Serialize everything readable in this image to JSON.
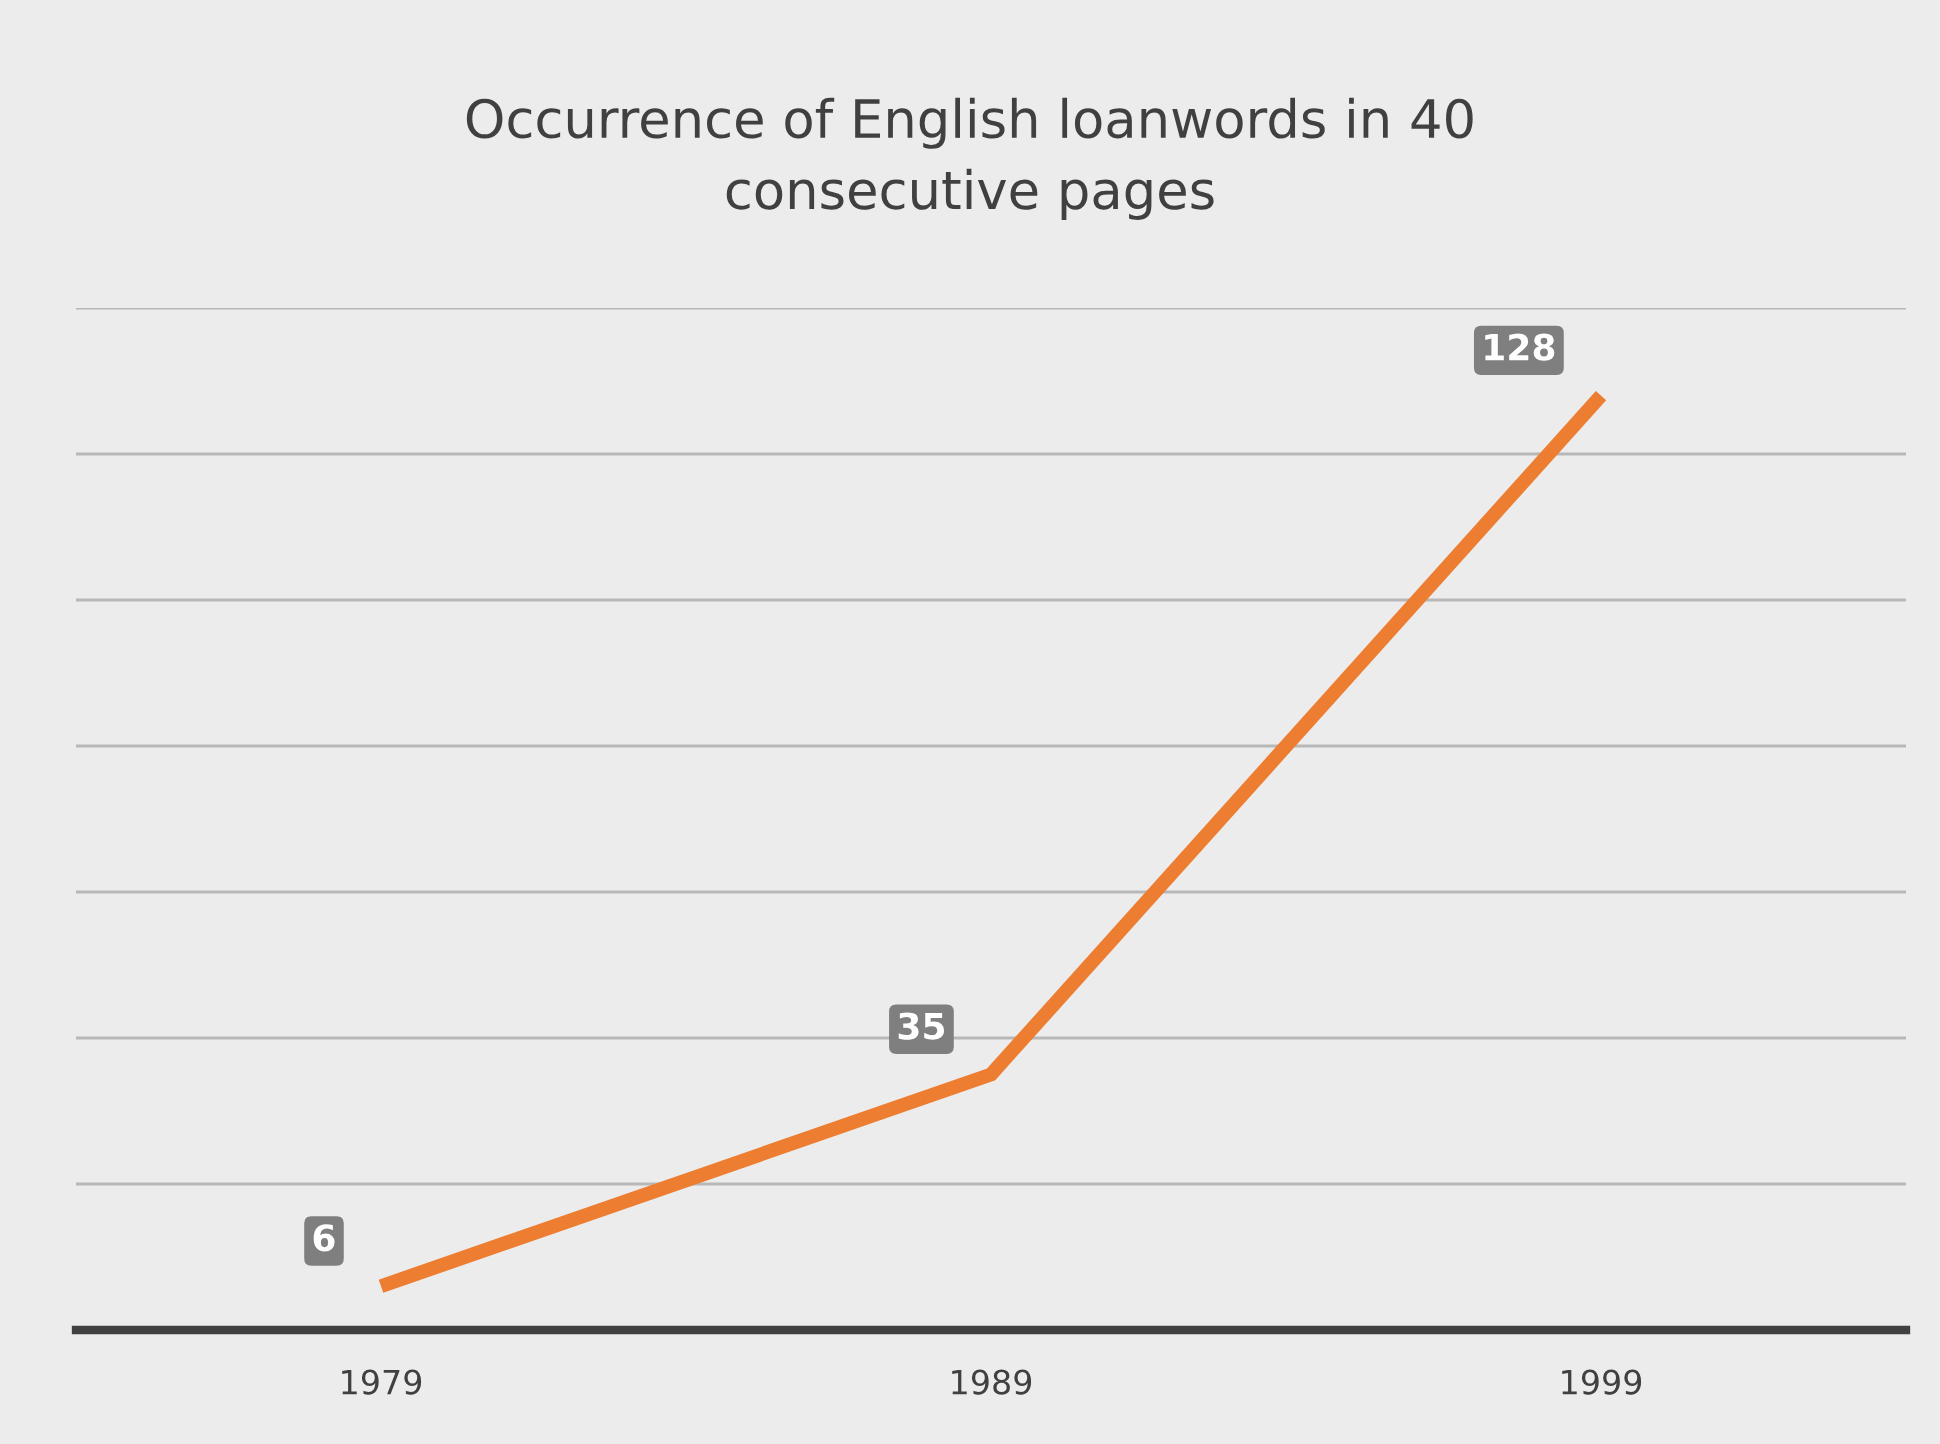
{
  "chart_data": {
    "type": "line",
    "title": "Occurrence of English loanwords in 40\nconsecutive pages",
    "categories": [
      "1979",
      "1989",
      "1999"
    ],
    "series": [
      {
        "color": "#ed7d31",
        "values": [
          6,
          35,
          128
        ]
      }
    ],
    "ylim": [
      0,
      140
    ],
    "yticks": [
      {
        "value": 0,
        "label": null
      },
      {
        "value": 20,
        "label": null
      },
      {
        "value": 40,
        "label": null
      },
      {
        "value": 60,
        "label": null
      },
      {
        "value": 80,
        "label": null
      },
      {
        "value": 100,
        "label": null
      },
      {
        "value": 120,
        "label": null
      },
      {
        "value": 140,
        "label": null
      }
    ],
    "grid": "y",
    "tick_labels": "x",
    "data_labels": true,
    "marker": "none",
    "line_style": "solid"
  }
}
